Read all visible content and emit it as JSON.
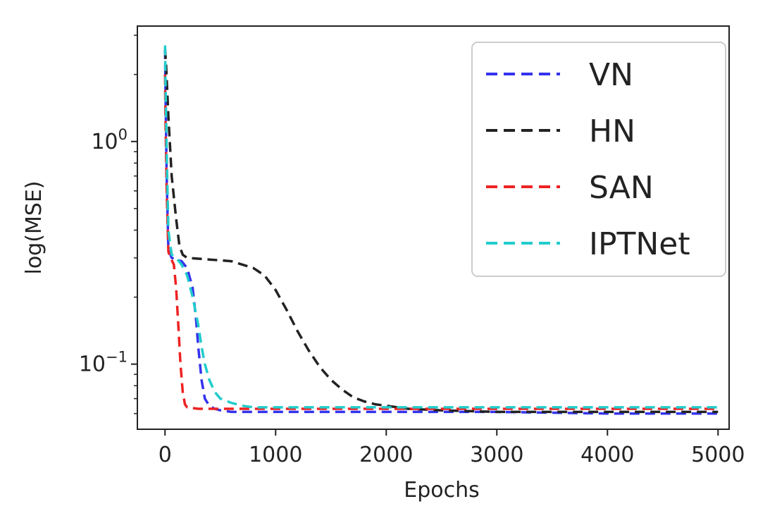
{
  "chart_data": {
    "type": "line",
    "title": "",
    "xlabel": "Epochs",
    "ylabel": "log(MSE)",
    "xlim": [
      -250,
      5100
    ],
    "ylim": [
      0.051,
      3.3
    ],
    "yscale": "log",
    "xticks": [
      0,
      1000,
      2000,
      3000,
      4000,
      5000
    ],
    "xtick_labels": [
      "0",
      "1000",
      "2000",
      "3000",
      "4000",
      "5000"
    ],
    "yticks": [
      1,
      0.1
    ],
    "ytick_bases": [
      "10",
      "10"
    ],
    "ytick_exponents": [
      "0",
      "−1"
    ],
    "grid": false,
    "legend_position": "upper right",
    "line_style": "dashed",
    "series": [
      {
        "name": "VN",
        "color": "#3333ee",
        "x": [
          0,
          5,
          15,
          30,
          60,
          100,
          150,
          200,
          250,
          280,
          300,
          330,
          360,
          400,
          450,
          500,
          600,
          800,
          1000,
          2000,
          3000,
          4000,
          5000
        ],
        "y": [
          2.6,
          1.6,
          0.7,
          0.33,
          0.3,
          0.295,
          0.29,
          0.27,
          0.22,
          0.16,
          0.12,
          0.085,
          0.07,
          0.065,
          0.063,
          0.062,
          0.061,
          0.061,
          0.061,
          0.061,
          0.061,
          0.06,
          0.06
        ]
      },
      {
        "name": "HN",
        "color": "#222222",
        "x": [
          0,
          10,
          30,
          60,
          100,
          130,
          160,
          200,
          400,
          600,
          800,
          900,
          1000,
          1100,
          1200,
          1300,
          1400,
          1500,
          1600,
          1700,
          1800,
          1900,
          2000,
          2200,
          2500,
          3000,
          4000,
          5000
        ],
        "y": [
          2.6,
          2.2,
          1.3,
          0.7,
          0.45,
          0.34,
          0.31,
          0.3,
          0.295,
          0.29,
          0.27,
          0.25,
          0.215,
          0.175,
          0.14,
          0.115,
          0.097,
          0.085,
          0.077,
          0.071,
          0.068,
          0.066,
          0.065,
          0.063,
          0.062,
          0.061,
          0.061,
          0.061
        ]
      },
      {
        "name": "SAN",
        "color": "#ee2222",
        "x": [
          0,
          5,
          15,
          30,
          50,
          80,
          100,
          120,
          140,
          160,
          180,
          200,
          300,
          500,
          1000,
          2000,
          3000,
          4000,
          5000
        ],
        "y": [
          2.0,
          1.2,
          0.6,
          0.32,
          0.3,
          0.28,
          0.22,
          0.15,
          0.1,
          0.075,
          0.066,
          0.064,
          0.063,
          0.063,
          0.063,
          0.063,
          0.063,
          0.063,
          0.063
        ]
      },
      {
        "name": "IPTNet",
        "color": "#22cccc",
        "x": [
          0,
          5,
          15,
          30,
          60,
          100,
          150,
          200,
          250,
          300,
          330,
          360,
          400,
          450,
          500,
          600,
          700,
          800,
          1000,
          2000,
          3000,
          4000,
          5000
        ],
        "y": [
          2.7,
          1.8,
          0.9,
          0.4,
          0.31,
          0.3,
          0.28,
          0.25,
          0.2,
          0.15,
          0.12,
          0.1,
          0.085,
          0.075,
          0.07,
          0.067,
          0.065,
          0.064,
          0.064,
          0.064,
          0.064,
          0.064,
          0.064
        ]
      }
    ]
  }
}
